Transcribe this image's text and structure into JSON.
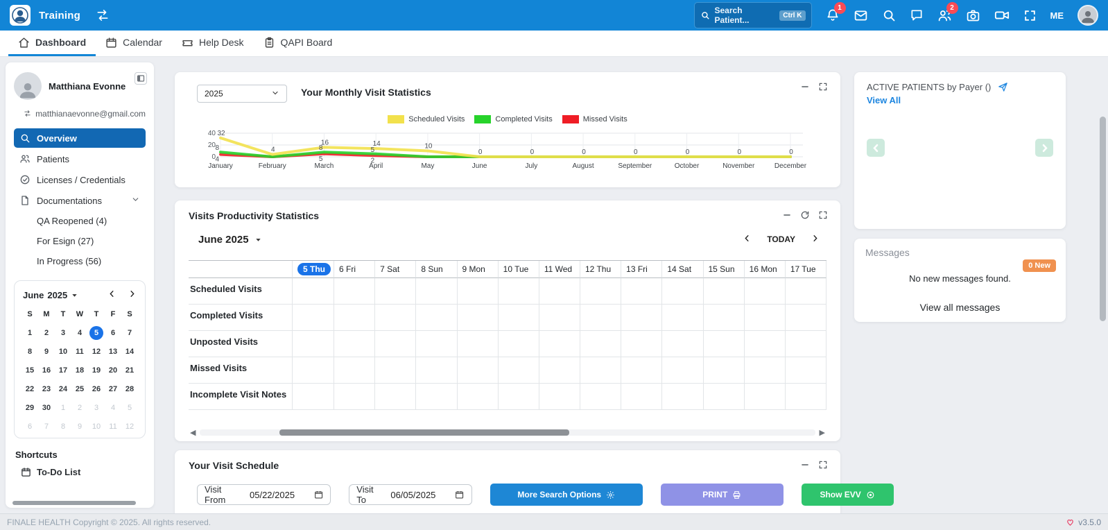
{
  "header": {
    "brand": "Training",
    "search": {
      "placeholder": "Search Patient...",
      "shortcut": "Ctrl K"
    },
    "notification_count": "1",
    "patients_count": "2",
    "user_short": "ME"
  },
  "nav": {
    "tabs": [
      {
        "label": "Dashboard",
        "icon": "home-icon",
        "active": true
      },
      {
        "label": "Calendar",
        "icon": "calendar-icon",
        "active": false
      },
      {
        "label": "Help Desk",
        "icon": "ticket-icon",
        "active": false
      },
      {
        "label": "QAPI Board",
        "icon": "clipboard-icon",
        "active": false
      }
    ]
  },
  "sidebar": {
    "user": {
      "name": "Matthiana Evonne",
      "email": "matthianaevonne@gmail.com"
    },
    "menu": [
      {
        "label": "Overview",
        "icon": "search-icon",
        "active": true
      },
      {
        "label": "Patients",
        "icon": "users-icon"
      },
      {
        "label": "Licenses / Credentials",
        "icon": "check-circle-icon"
      },
      {
        "label": "Documentations",
        "icon": "file-icon",
        "chevron": true
      },
      {
        "label": "QA Reopened (4)",
        "sub": true
      },
      {
        "label": "For Esign (27)",
        "sub": true
      },
      {
        "label": "In Progress (56)",
        "sub": true
      }
    ],
    "calendar": {
      "month": "June",
      "year": "2025",
      "day_headers": [
        "S",
        "M",
        "T",
        "W",
        "T",
        "F",
        "S"
      ],
      "weeks": [
        [
          1,
          2,
          3,
          4,
          5,
          6,
          7
        ],
        [
          8,
          9,
          10,
          11,
          12,
          13,
          14
        ],
        [
          15,
          16,
          17,
          18,
          19,
          20,
          21
        ],
        [
          22,
          23,
          24,
          25,
          26,
          27,
          28
        ],
        [
          29,
          30,
          1,
          2,
          3,
          4,
          5
        ],
        [
          6,
          7,
          8,
          9,
          10,
          11,
          12
        ]
      ],
      "selected_day": 5
    },
    "shortcuts_title": "Shortcuts",
    "shortcuts": [
      {
        "label": "To-Do List",
        "icon": "todo-calendar-icon"
      }
    ]
  },
  "monthly_stats": {
    "title": "Your Monthly Visit Statistics",
    "year_selected": "2025"
  },
  "chart_data": {
    "type": "line",
    "title": "Your Monthly Visit Statistics",
    "categories": [
      "January",
      "February",
      "March",
      "April",
      "May",
      "June",
      "July",
      "August",
      "September",
      "October",
      "November",
      "December"
    ],
    "series": [
      {
        "name": "Scheduled Visits",
        "color": "#f2e14c",
        "values": [
          32,
          4,
          16,
          14,
          10,
          0,
          0,
          0,
          0,
          0,
          0,
          0
        ]
      },
      {
        "name": "Completed Visits",
        "color": "#27d32b",
        "values": [
          8,
          0,
          8,
          5,
          0,
          0,
          0,
          0,
          0,
          0,
          0,
          0
        ]
      },
      {
        "name": "Missed Visits",
        "color": "#ef1d25",
        "values": [
          4,
          0,
          5,
          2,
          0,
          0,
          0,
          0,
          0,
          0,
          0,
          0
        ]
      }
    ],
    "ylim": [
      0,
      40
    ],
    "yticks": [
      0,
      20,
      40
    ],
    "legend_position": "top",
    "grid": true
  },
  "productivity": {
    "title": "Visits Productivity Statistics",
    "month_label": "June  2025",
    "today_label": "TODAY",
    "columns": [
      "5 Thu",
      "6 Fri",
      "7 Sat",
      "8 Sun",
      "9 Mon",
      "10 Tue",
      "11 Wed",
      "12 Thu",
      "13 Fri",
      "14 Sat",
      "15 Sun",
      "16 Mon",
      "17 Tue"
    ],
    "selected_column": "5 Thu",
    "rows": [
      "Scheduled Visits",
      "Completed Visits",
      "Unposted Visits",
      "Missed Visits",
      "Incomplete Visit Notes"
    ]
  },
  "visit_schedule": {
    "title": "Your Visit Schedule",
    "from_label": "Visit From",
    "from_value": "05/22/2025",
    "to_label": "Visit To",
    "to_value": "06/05/2025",
    "more_search_label": "More Search Options",
    "print_label": "PRINT",
    "show_evv_label": "Show EVV"
  },
  "right_panel": {
    "active_patients": {
      "title": "ACTIVE PATIENTS by Payer  ()",
      "view_all": "View All"
    },
    "messages": {
      "title": "Messages",
      "badge": "0 New",
      "empty_text": "No new messages found.",
      "view_all": "View all messages"
    }
  },
  "footer": {
    "copyright": "FINALE HEALTH Copyright © 2025. All rights reserved.",
    "version": "v3.5.0"
  },
  "colors": {
    "topbar": "#1285d6",
    "active_menu": "#1268b3",
    "selected_day": "#1a73e8",
    "badge_red": "#fb4b55",
    "new_badge_orange": "#f0914f",
    "btn_blue": "#1e87d5",
    "btn_lavender": "#8f92e6",
    "btn_green": "#2fc46d",
    "carousel_mint": "#cdeadd",
    "link_blue": "#1d86e0"
  }
}
